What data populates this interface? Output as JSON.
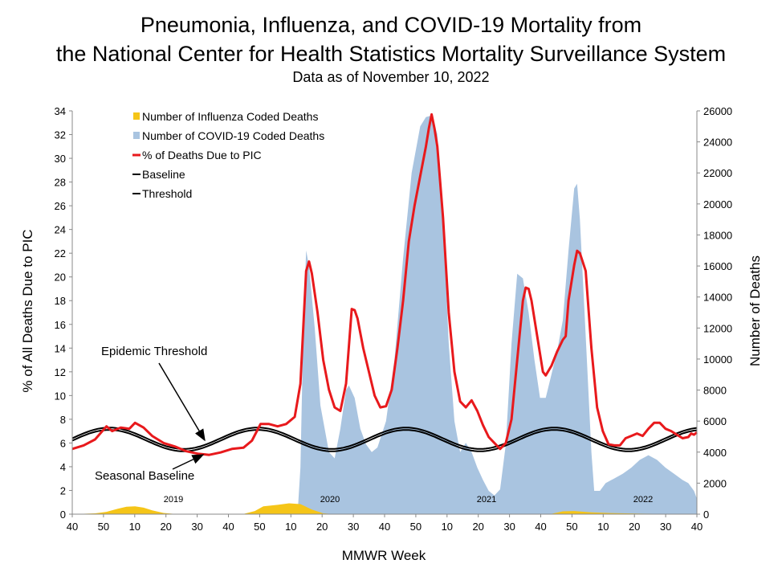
{
  "title_line1": "Pneumonia, Influenza, and COVID-19 Mortality from",
  "title_line2": "the National Center for Health Statistics Mortality Surveillance System",
  "subtitle": "Data as of November 10, 2022",
  "colors": {
    "influenza": "#F5C518",
    "covid": "#A9C4E0",
    "pic": "#E8191C",
    "baseline": "#000000"
  },
  "chart_data": {
    "type": "area",
    "xlabel": "MMWR Week",
    "ylabel_left": "% of All Deaths Due to PIC",
    "ylabel_right": "Number of Deaths",
    "y_left_range": [
      0,
      34
    ],
    "y_right_range": [
      0,
      26000
    ],
    "y_left_ticks": [
      "0",
      "2",
      "4",
      "6",
      "8",
      "10",
      "12",
      "14",
      "16",
      "18",
      "20",
      "22",
      "24",
      "26",
      "28",
      "30",
      "32",
      "34"
    ],
    "y_right_ticks": [
      "0",
      "2000",
      "4000",
      "6000",
      "8000",
      "10000",
      "12000",
      "14000",
      "16000",
      "18000",
      "20000",
      "22000",
      "24000",
      "26000"
    ],
    "x_tick_labels": [
      "40",
      "50",
      "10",
      "20",
      "30",
      "40",
      "50",
      "10",
      "20",
      "30",
      "40",
      "50",
      "10",
      "20",
      "30",
      "40",
      "50",
      "10",
      "20",
      "30",
      "40"
    ],
    "year_labels": [
      "2019",
      "2020",
      "2021",
      "2022"
    ],
    "legend": [
      "Number of Influenza Coded Deaths",
      "Number of COVID-19 Coded Deaths",
      "% of Deaths Due to PIC",
      "Baseline",
      "Threshold"
    ],
    "annotations": [
      "Epidemic Threshold",
      "Seasonal Baseline"
    ],
    "x_week_index_range": [
      0,
      160
    ],
    "series": [
      {
        "name": "% of Deaths Due to PIC",
        "axis": "left",
        "points": [
          [
            0,
            5.5
          ],
          [
            4,
            5.8
          ],
          [
            8,
            6.3
          ],
          [
            12,
            7.4
          ],
          [
            14,
            7.0
          ],
          [
            17,
            7.3
          ],
          [
            20,
            7.2
          ],
          [
            22,
            7.7
          ],
          [
            25,
            7.3
          ],
          [
            28,
            6.6
          ],
          [
            32,
            6.0
          ],
          [
            36,
            5.7
          ],
          [
            40,
            5.3
          ],
          [
            44,
            5.1
          ],
          [
            48,
            5.0
          ],
          [
            52,
            5.2
          ],
          [
            56,
            5.5
          ],
          [
            60,
            5.6
          ],
          [
            63,
            6.2
          ],
          [
            66,
            7.6
          ],
          [
            69,
            7.6
          ],
          [
            72,
            7.4
          ],
          [
            75,
            7.6
          ],
          [
            78,
            8.2
          ],
          [
            80,
            11
          ],
          [
            82,
            20.5
          ],
          [
            83,
            21.3
          ],
          [
            84,
            20.3
          ],
          [
            86,
            17
          ],
          [
            88,
            13
          ],
          [
            90,
            10.5
          ],
          [
            92,
            9
          ],
          [
            94,
            8.7
          ],
          [
            96,
            11
          ],
          [
            98,
            17.3
          ],
          [
            99,
            17.2
          ],
          [
            100,
            16.5
          ],
          [
            102,
            14
          ],
          [
            104,
            12
          ],
          [
            106,
            10
          ],
          [
            108,
            9
          ],
          [
            110,
            9.1
          ],
          [
            112,
            10.5
          ],
          [
            114,
            14
          ],
          [
            116,
            18
          ],
          [
            118,
            23
          ],
          [
            120,
            26
          ],
          [
            122,
            28.5
          ],
          [
            124,
            31
          ],
          [
            125,
            32.5
          ],
          [
            126,
            33.7
          ],
          [
            127,
            32.5
          ],
          [
            128,
            31
          ],
          [
            130,
            25
          ],
          [
            132,
            17
          ],
          [
            134,
            12
          ],
          [
            136,
            9.5
          ],
          [
            138,
            9
          ],
          [
            140,
            9.6
          ],
          [
            142,
            8.7
          ],
          [
            144,
            7.5
          ],
          [
            146,
            6.5
          ],
          [
            148,
            6
          ],
          [
            150,
            5.5
          ],
          [
            152,
            6
          ],
          [
            154,
            8
          ],
          [
            156,
            13
          ],
          [
            158,
            18
          ],
          [
            159,
            19.1
          ],
          [
            160,
            19
          ],
          [
            161,
            18
          ],
          [
            163,
            15
          ],
          [
            165,
            12
          ],
          [
            166,
            11.7
          ],
          [
            168,
            12.5
          ],
          [
            170,
            13.7
          ],
          [
            172,
            14.7
          ],
          [
            173,
            15
          ],
          [
            174,
            18
          ],
          [
            176,
            21
          ],
          [
            177,
            22.2
          ],
          [
            178,
            22
          ],
          [
            180,
            20.5
          ],
          [
            182,
            14
          ],
          [
            184,
            9
          ],
          [
            186,
            7
          ],
          [
            188,
            5.9
          ],
          [
            190,
            5.8
          ],
          [
            192,
            5.8
          ],
          [
            194,
            6.4
          ],
          [
            196,
            6.6
          ],
          [
            198,
            6.8
          ],
          [
            200,
            6.6
          ],
          [
            202,
            7.2
          ],
          [
            204,
            7.7
          ],
          [
            206,
            7.7
          ],
          [
            208,
            7.2
          ],
          [
            210,
            7.0
          ],
          [
            212,
            6.7
          ],
          [
            214,
            6.4
          ],
          [
            216,
            6.5
          ],
          [
            217,
            6.8
          ],
          [
            218,
            6.7
          ],
          [
            219,
            6.9
          ]
        ]
      },
      {
        "name": "Number of COVID-19 Coded Deaths",
        "axis": "right",
        "points": [
          [
            0,
            0
          ],
          [
            79,
            0
          ],
          [
            80,
            3000
          ],
          [
            81,
            12000
          ],
          [
            82,
            17000
          ],
          [
            83,
            16000
          ],
          [
            85,
            12000
          ],
          [
            87,
            7000
          ],
          [
            89,
            5000
          ],
          [
            90,
            4000
          ],
          [
            92,
            3600
          ],
          [
            94,
            5500
          ],
          [
            96,
            8000
          ],
          [
            97,
            8300
          ],
          [
            99,
            7500
          ],
          [
            101,
            5500
          ],
          [
            103,
            4500
          ],
          [
            105,
            4000
          ],
          [
            107,
            4300
          ],
          [
            110,
            6000
          ],
          [
            113,
            10000
          ],
          [
            116,
            16500
          ],
          [
            119,
            22000
          ],
          [
            122,
            25000
          ],
          [
            124,
            25600
          ],
          [
            126,
            25700
          ],
          [
            128,
            24500
          ],
          [
            130,
            19000
          ],
          [
            132,
            11000
          ],
          [
            134,
            6000
          ],
          [
            136,
            4000
          ],
          [
            138,
            4600
          ],
          [
            140,
            4000
          ],
          [
            142,
            3000
          ],
          [
            144,
            2200
          ],
          [
            146,
            1500
          ],
          [
            148,
            1200
          ],
          [
            150,
            1600
          ],
          [
            152,
            4500
          ],
          [
            154,
            11000
          ],
          [
            156,
            15500
          ],
          [
            158,
            15200
          ],
          [
            160,
            13000
          ],
          [
            162,
            10000
          ],
          [
            164,
            7500
          ],
          [
            166,
            7500
          ],
          [
            168,
            9000
          ],
          [
            170,
            10500
          ],
          [
            172,
            12500
          ],
          [
            174,
            17000
          ],
          [
            176,
            21000
          ],
          [
            177,
            21300
          ],
          [
            178,
            19000
          ],
          [
            180,
            11500
          ],
          [
            182,
            4000
          ],
          [
            183,
            1500
          ],
          [
            185,
            1500
          ],
          [
            187,
            2000
          ],
          [
            190,
            2300
          ],
          [
            193,
            2600
          ],
          [
            196,
            3000
          ],
          [
            199,
            3500
          ],
          [
            202,
            3800
          ],
          [
            205,
            3500
          ],
          [
            208,
            3000
          ],
          [
            211,
            2600
          ],
          [
            214,
            2200
          ],
          [
            216,
            2000
          ],
          [
            218,
            1500
          ],
          [
            219,
            1000
          ]
        ]
      },
      {
        "name": "Number of Influenza Coded Deaths",
        "axis": "right",
        "points": [
          [
            0,
            0
          ],
          [
            8,
            50
          ],
          [
            12,
            150
          ],
          [
            16,
            350
          ],
          [
            19,
            480
          ],
          [
            22,
            500
          ],
          [
            25,
            420
          ],
          [
            28,
            250
          ],
          [
            32,
            80
          ],
          [
            36,
            10
          ],
          [
            60,
            10
          ],
          [
            64,
            200
          ],
          [
            67,
            500
          ],
          [
            72,
            600
          ],
          [
            76,
            700
          ],
          [
            80,
            650
          ],
          [
            84,
            300
          ],
          [
            88,
            50
          ],
          [
            92,
            0
          ],
          [
            160,
            0
          ],
          [
            168,
            20
          ],
          [
            172,
            180
          ],
          [
            176,
            200
          ],
          [
            182,
            120
          ],
          [
            190,
            60
          ],
          [
            200,
            30
          ],
          [
            219,
            0
          ]
        ]
      },
      {
        "name": "Baseline",
        "axis": "left",
        "function": "sinusoid",
        "mean": 6.2,
        "amplitude": 0.9,
        "period_weeks": 52,
        "peak_week_index": 13
      },
      {
        "name": "Threshold",
        "axis": "left",
        "function": "sinusoid",
        "mean": 6.4,
        "amplitude": 0.9,
        "period_weeks": 52,
        "peak_week_index": 13
      }
    ]
  }
}
